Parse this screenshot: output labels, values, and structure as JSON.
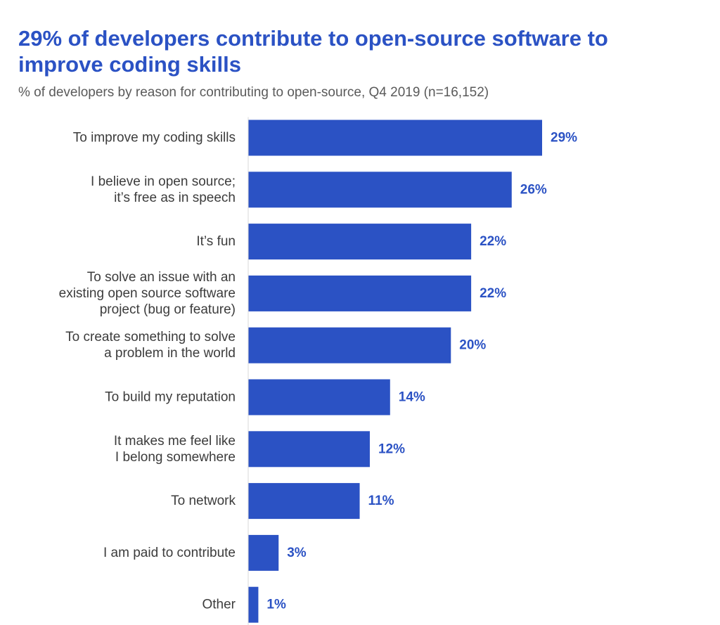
{
  "chart_data": {
    "type": "bar",
    "orientation": "horizontal",
    "title": "29% of developers contribute to open-source software to improve coding skills",
    "subtitle": "% of developers by reason for contributing to open-source, Q4 2019 (n=16,152)",
    "categories": [
      [
        "To improve my coding skills"
      ],
      [
        "I believe in open source;",
        "it’s free as in speech"
      ],
      [
        "It’s fun"
      ],
      [
        "To solve an issue with an",
        "existing open source software",
        "project (bug or feature)"
      ],
      [
        "To create something to solve",
        "a problem in the world"
      ],
      [
        "To build my reputation"
      ],
      [
        "It makes me feel like",
        "I belong somewhere"
      ],
      [
        "To network"
      ],
      [
        "I am paid to contribute"
      ],
      [
        "Other"
      ]
    ],
    "values": [
      29,
      26,
      22,
      22,
      20,
      14,
      12,
      11,
      3,
      1
    ],
    "value_labels": [
      "29%",
      "26%",
      "22%",
      "22%",
      "20%",
      "14%",
      "12%",
      "11%",
      "3%",
      "1%"
    ],
    "unit": "%",
    "bar_color": "#2b52c4",
    "label_color": "#3c3c3c",
    "value_label_color": "#2b52c4",
    "grid": false,
    "legend": "none"
  }
}
